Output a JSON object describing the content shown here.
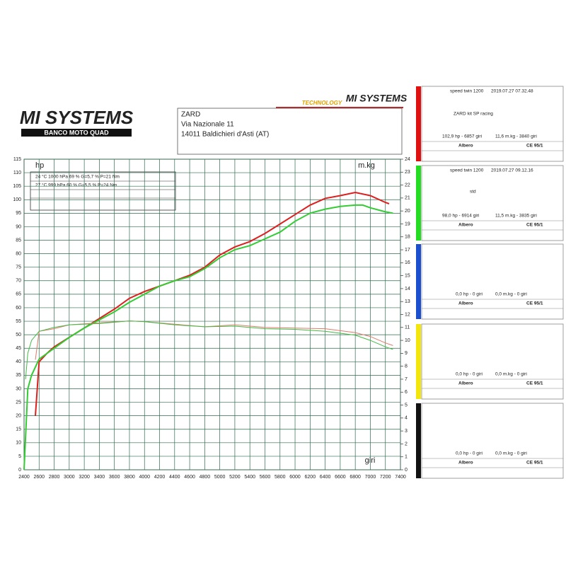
{
  "logo": {
    "name": "MI SYSTEMS",
    "tagline": "BANCO MOTO QUAD"
  },
  "logo2": {
    "tag": "TECHNOLOGY",
    "name": "MI SYSTEMS"
  },
  "address": [
    "ZARD",
    "Via Nazionale 11",
    "14011 Baldichieri d'Asti (AT)"
  ],
  "chart_data": {
    "type": "line",
    "y_label": "hp",
    "y2_label": "m.kg",
    "x_label": "giri",
    "conditions": [
      "24 °C   1000 hPa   69 %   G=5,7 %   P=21 Nm",
      "27 °C   999 hPa   60 %   G=5,5 %   P=24 Nm"
    ],
    "xlim": [
      2400,
      7400
    ],
    "xticks": [
      2400,
      2600,
      2800,
      3000,
      3200,
      3400,
      3600,
      3800,
      4000,
      4200,
      4400,
      4600,
      4800,
      5000,
      5200,
      5400,
      5600,
      5800,
      6000,
      6200,
      6400,
      6600,
      6800,
      7000,
      7200,
      7400
    ],
    "ylim": [
      0,
      115
    ],
    "yticks": [
      0,
      5,
      10,
      15,
      20,
      25,
      30,
      35,
      40,
      45,
      50,
      55,
      60,
      65,
      70,
      75,
      80,
      85,
      90,
      95,
      100,
      105,
      110,
      115
    ],
    "y2lim": [
      0,
      24
    ],
    "y2ticks": [
      0,
      1,
      2,
      3,
      4,
      5,
      6,
      7,
      8,
      9,
      10,
      11,
      12,
      13,
      14,
      15,
      16,
      17,
      18,
      19,
      20,
      21,
      22,
      23,
      24
    ],
    "grid": true,
    "series": [
      {
        "color": "#dd1f1f",
        "width": 2,
        "x": [
          2550,
          2600,
          2700,
          2800,
          3000,
          3200,
          3400,
          3600,
          3800,
          4000,
          4200,
          4400,
          4600,
          4800,
          5000,
          5200,
          5400,
          5600,
          5800,
          6000,
          6200,
          6400,
          6600,
          6800,
          7000,
          7200,
          7250
        ],
        "values": [
          20,
          40,
          43,
          45.5,
          49,
          52.5,
          56,
          59.5,
          63.5,
          66,
          68,
          70,
          72,
          75,
          79.5,
          82.5,
          84.5,
          87.5,
          91,
          94.5,
          98,
          100.5,
          101.5,
          102.7,
          101.5,
          99,
          98.5
        ]
      },
      {
        "color": "#33cc33",
        "width": 2,
        "x": [
          2400,
          2450,
          2500,
          2600,
          2800,
          3000,
          3200,
          3400,
          3600,
          3800,
          4000,
          4200,
          4400,
          4600,
          4800,
          5000,
          5200,
          5400,
          5600,
          5800,
          6000,
          6200,
          6400,
          6600,
          6800,
          6900,
          7000,
          7200,
          7300
        ],
        "values": [
          0,
          30,
          35,
          41,
          45,
          49,
          52.5,
          55.5,
          58.5,
          62,
          65,
          68,
          70,
          71.5,
          74.5,
          78.5,
          81.5,
          83,
          85.5,
          88,
          92,
          95,
          96.5,
          97.5,
          98,
          98,
          97,
          95.5,
          95
        ]
      },
      {
        "color": "#e07a6a",
        "width": 1,
        "axis": "y2",
        "x": [
          2550,
          2600,
          2800,
          3000,
          3400,
          3800,
          4000,
          4400,
          4800,
          5200,
          5600,
          6000,
          6400,
          6800,
          7000,
          7200,
          7300
        ],
        "values": [
          8.5,
          10.7,
          10.9,
          11.2,
          11.35,
          11.5,
          11.45,
          11.25,
          11.05,
          11.2,
          11,
          10.95,
          10.9,
          10.6,
          10.3,
          9.8,
          9.6
        ]
      },
      {
        "color": "#44bb44",
        "width": 1,
        "axis": "y2",
        "x": [
          2420,
          2450,
          2500,
          2600,
          2800,
          3000,
          3400,
          3800,
          4000,
          4400,
          4800,
          5200,
          5600,
          6000,
          6400,
          6800,
          7000,
          7200,
          7300
        ],
        "values": [
          7,
          9,
          10,
          10.7,
          11,
          11.2,
          11.3,
          11.5,
          11.45,
          11.2,
          11.05,
          11.1,
          10.9,
          10.85,
          10.7,
          10.4,
          10,
          9.5,
          9.3
        ]
      }
    ]
  },
  "panels": [
    {
      "color": "#e01010",
      "model": "speed twin 1200",
      "timestamp": "2019.07.27 07.32.48",
      "note": "ZARD kit  SP racing",
      "power": "102,9 hp - 6857 giri",
      "torque": "11,6 m.kg - 3840 giri",
      "shaft": "Albero",
      "norm": "CE 95/1"
    },
    {
      "color": "#22dd22",
      "model": "speed twin 1200",
      "timestamp": "2019.07.27 09.12.16",
      "note": "std",
      "power": "98,0 hp - 6914 giri",
      "torque": "11,5 m.kg - 3835 giri",
      "shaft": "Albero",
      "norm": "CE 95/1"
    },
    {
      "color": "#1a4fd0",
      "power": "0,0 hp - 0 giri",
      "torque": "0,0 m.kg - 0 giri",
      "shaft": "Albero",
      "norm": "CE 95/1"
    },
    {
      "color": "#f2e60a",
      "power": "0,0 hp - 0 giri",
      "torque": "0,0 m.kg - 0 giri",
      "shaft": "Albero",
      "norm": "CE 95/1"
    },
    {
      "color": "#111111",
      "power": "0,0 hp - 0 giri",
      "torque": "0,0 m.kg - 0 giri",
      "shaft": "Albero",
      "norm": "CE 95/1"
    }
  ]
}
